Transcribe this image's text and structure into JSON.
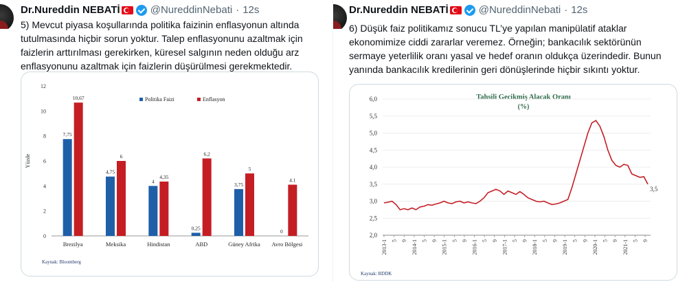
{
  "tweets": [
    {
      "author": "Dr.Nureddin NEBATİ",
      "handle": "@NureddinNebati",
      "separator": "·",
      "time": "12s",
      "text": "5) Mevcut piyasa koşullarında politika faizinin enflasyonun altında tutulmasında hiçbir sorun yoktur. Talep enflasyonunu azaltmak için faizlerin arttırılması gerekirken, küresel salgının neden olduğu arz enflasyonunu azaltmak için faizlerin düşürülmesi gerekmektedir."
    },
    {
      "author": "Dr.Nureddin NEBATİ",
      "handle": "@NureddinNebati",
      "separator": "·",
      "time": "12s",
      "text": "6) Düşük faiz politikamız sonucu TL’ye yapılan manipülatif ataklar ekonomimize ciddi zararlar veremez. Örneğin; bankacılık sektörünün sermaye yeterlilik oranı yasal ve hedef oranın oldukça üzerindedir. Bunun yanında bankacılık kredilerinin geri dönüşlerinde hiçbir sıkıntı yoktur."
    }
  ],
  "chart_data": [
    {
      "type": "bar",
      "ylabel": "Yüzde",
      "ylim": [
        0,
        12
      ],
      "yticks": [
        "0",
        "2",
        "4",
        "6",
        "8",
        "10",
        "12"
      ],
      "categories": [
        "Brezilya",
        "Meksika",
        "Hindistan",
        "ABD",
        "Güney Afrika",
        "Avro Bölgesi"
      ],
      "series": [
        {
          "name": "Politika Faizi",
          "color": "#1f5fa8",
          "values": [
            7.75,
            4.75,
            4,
            0.25,
            3.75,
            0
          ],
          "labels": [
            "7,75",
            "4,75",
            "4",
            "0,25",
            "3,75",
            "0"
          ]
        },
        {
          "name": "Enflasyon",
          "color": "#c41e24",
          "values": [
            10.67,
            6,
            4.35,
            6.2,
            5,
            4.1
          ],
          "labels": [
            "10,67",
            "6",
            "4,35",
            "6,2",
            "5",
            "4.1"
          ]
        }
      ],
      "legend_position": "top-center",
      "source": "Kaynak: Bloomberg"
    },
    {
      "type": "line",
      "title": "Tahsili Gecikmiş Alacak Oranı",
      "subtitle": "(%)",
      "ylim": [
        2.0,
        6.0
      ],
      "yticks": [
        "2,0",
        "2,5",
        "3,0",
        "3,5",
        "4,0",
        "4,5",
        "5,0",
        "5,5",
        "6,0"
      ],
      "xticks": [
        "2013-1",
        "5",
        "9",
        "2014-1",
        "5",
        "9",
        "2015-1",
        "5",
        "9",
        "2016-1",
        "5",
        "9",
        "2017-1",
        "5",
        "9",
        "2018-1",
        "5",
        "9",
        "2019-1",
        "5",
        "9",
        "2020-1",
        "5",
        "9",
        "2021-1",
        "5",
        "9"
      ],
      "end_label": "3,5",
      "color": "#c41e24",
      "series": [
        {
          "values": [
            2.95,
            2.97,
            3.0,
            2.9,
            2.75,
            2.78,
            2.75,
            2.8,
            2.75,
            2.83,
            2.85,
            2.9,
            2.88,
            2.92,
            2.95,
            3.0,
            2.95,
            2.93,
            2.98,
            3.0,
            2.95,
            2.98,
            2.95,
            2.93,
            3.0,
            3.1,
            3.25,
            3.3,
            3.35,
            3.3,
            3.2,
            3.3,
            3.25,
            3.2,
            3.28,
            3.2,
            3.1,
            3.05,
            3.0,
            2.98,
            3.0,
            2.95,
            2.9,
            2.92,
            2.95,
            3.0,
            3.05,
            3.4,
            3.8,
            4.2,
            4.6,
            5.0,
            5.3,
            5.37,
            5.2,
            4.9,
            4.5,
            4.2,
            4.05,
            4.0,
            4.08,
            4.05,
            3.8,
            3.75,
            3.7,
            3.72,
            3.5
          ]
        }
      ],
      "source": "Kaynak: BDDK"
    }
  ]
}
